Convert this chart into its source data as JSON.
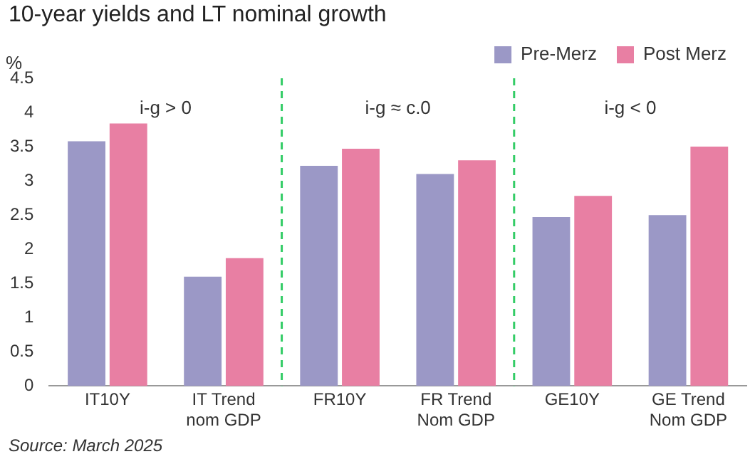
{
  "chart_data": {
    "type": "bar",
    "title": "10-year yields and LT nominal growth",
    "ylabel": "%",
    "categories": [
      "IT10Y",
      "IT Trend nom GDP",
      "FR10Y",
      "FR Trend Nom GDP",
      "GE10Y",
      "GE Trend Nom GDP"
    ],
    "series": [
      {
        "name": "Pre-Merz",
        "color": "#9b98c6",
        "values": [
          3.58,
          1.6,
          3.22,
          3.1,
          2.47,
          2.5
        ]
      },
      {
        "name": "Post Merz",
        "color": "#e87fa3",
        "values": [
          3.84,
          1.87,
          3.47,
          3.3,
          2.78,
          3.5
        ]
      }
    ],
    "ylim": [
      0,
      4.5
    ],
    "yticks": [
      0,
      0.5,
      1,
      1.5,
      2,
      2.5,
      3,
      3.5,
      4,
      4.5
    ],
    "grid": false,
    "legend": "top right",
    "annotations": [
      "i-g > 0",
      "i-g ≈ c.0",
      "i-g < 0",
      "Source: March 2025"
    ]
  }
}
